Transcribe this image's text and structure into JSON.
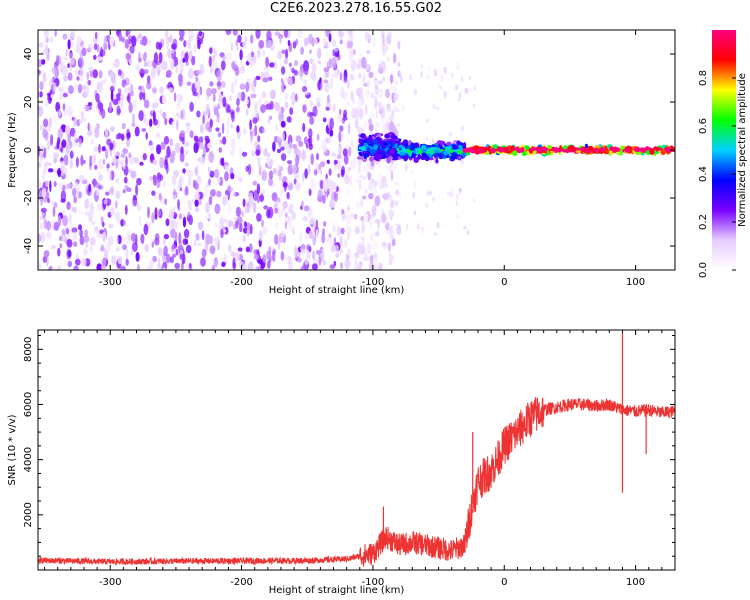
{
  "title": "C2E6.2023.278.16.55.G02",
  "chart_data": [
    {
      "type": "heatmap",
      "xlabel": "Height of straight line (km)",
      "ylabel": "Frequency (Hz)",
      "xlim": [
        -355,
        130
      ],
      "ylim": [
        -50,
        50
      ],
      "x_ticks": [
        -300,
        -200,
        -100,
        0,
        100
      ],
      "y_ticks": [
        -40,
        -20,
        0,
        20,
        40
      ],
      "colorbar": {
        "label": "Normalized spectral amplitude",
        "range": [
          0,
          1
        ],
        "ticks": [
          0.0,
          0.2,
          0.4,
          0.6,
          0.8
        ],
        "colormap": [
          "#ffffff",
          "#e6ccff",
          "#7a00ff",
          "#0000ff",
          "#00d2ff",
          "#00ff00",
          "#ffff00",
          "#ff0000",
          "#ff0080"
        ]
      },
      "regions": [
        {
          "x_range": [
            -355,
            -110
          ],
          "y_range": [
            -50,
            50
          ],
          "amplitude": 0.1,
          "description_level": "noise"
        },
        {
          "x_range": [
            -110,
            -80
          ],
          "y_range": [
            -6,
            8
          ],
          "amplitude": 0.35
        },
        {
          "x_range": [
            -80,
            -30
          ],
          "y_range": [
            -5,
            4
          ],
          "amplitude": 0.45
        },
        {
          "x_range": [
            -30,
            130
          ],
          "y_range": [
            -2,
            2
          ],
          "amplitude": 0.9
        }
      ]
    },
    {
      "type": "line",
      "xlabel": "Height of straight line (km)",
      "ylabel": "SNR (10 * v/v)",
      "xlim": [
        -355,
        130
      ],
      "ylim": [
        0,
        8700
      ],
      "x_ticks": [
        -300,
        -200,
        -100,
        0,
        100
      ],
      "y_ticks": [
        2000,
        4000,
        6000,
        8000
      ],
      "line_color": "#ee3333",
      "series": [
        {
          "x": [
            -355,
            -300,
            -250,
            -200,
            -150,
            -120,
            -100,
            -90,
            -80,
            -70,
            -60,
            -50,
            -40,
            -30,
            -25,
            -20,
            -15,
            -10,
            -5,
            0,
            10,
            20,
            30,
            40,
            50,
            60,
            70,
            80,
            90,
            100,
            110,
            120,
            130
          ],
          "values": [
            350,
            300,
            320,
            330,
            340,
            400,
            600,
            1200,
            900,
            1000,
            900,
            800,
            700,
            900,
            2200,
            3200,
            3400,
            3600,
            4000,
            4500,
            5000,
            5500,
            5800,
            5900,
            6000,
            6000,
            5950,
            6000,
            5800,
            5750,
            5800,
            5700,
            5750
          ]
        }
      ],
      "spikes": [
        {
          "x": 90,
          "y": 8600
        },
        {
          "x": 90,
          "y": 2800
        },
        {
          "x": 108,
          "y": 4200
        },
        {
          "x": -24,
          "y": 5000
        },
        {
          "x": -92,
          "y": 2300
        }
      ]
    }
  ]
}
